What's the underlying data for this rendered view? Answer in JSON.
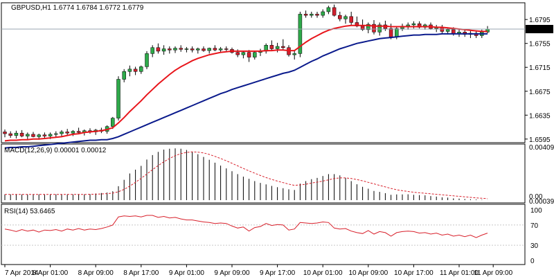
{
  "chart_data": {
    "type": "candlestick",
    "colors": {
      "up": "#2eaa4a",
      "down": "#d0202e",
      "ma_fast": "#e8151b",
      "ma_slow": "#0a1a8c",
      "macd_hist": "#000000",
      "macd_signal": "#d81f2a",
      "rsi": "#d81f2a",
      "last_price_bg": "#000000",
      "grid": "#c8c8c8"
    },
    "main": {
      "title": "GBPUSD,H1  1.6774 1.6784 1.6772 1.6779",
      "last_price": "1.6779",
      "price_ticks": [
        "1.6795",
        "1.6755",
        "1.6715",
        "1.6675",
        "1.6635",
        "1.6595"
      ],
      "ylim": [
        1.6589,
        1.6823
      ],
      "candles_ohlc": [
        [
          1.6607,
          1.6611,
          1.6598,
          1.6604
        ],
        [
          1.6604,
          1.6608,
          1.6597,
          1.6601
        ],
        [
          1.6601,
          1.6609,
          1.6596,
          1.6605
        ],
        [
          1.6605,
          1.661,
          1.6598,
          1.66
        ],
        [
          1.66,
          1.6606,
          1.6595,
          1.6603
        ],
        [
          1.6603,
          1.6607,
          1.6598,
          1.6599
        ],
        [
          1.6599,
          1.6604,
          1.6594,
          1.6602
        ],
        [
          1.6602,
          1.6606,
          1.6597,
          1.66
        ],
        [
          1.66,
          1.6606,
          1.6595,
          1.6603
        ],
        [
          1.6603,
          1.6608,
          1.6598,
          1.6604
        ],
        [
          1.6604,
          1.661,
          1.66,
          1.6607
        ],
        [
          1.6607,
          1.6612,
          1.6601,
          1.6605
        ],
        [
          1.6605,
          1.661,
          1.66,
          1.6608
        ],
        [
          1.6608,
          1.6614,
          1.6603,
          1.6606
        ],
        [
          1.6606,
          1.6611,
          1.6601,
          1.6609
        ],
        [
          1.6609,
          1.6613,
          1.6604,
          1.6607
        ],
        [
          1.6607,
          1.6612,
          1.6602,
          1.661
        ],
        [
          1.661,
          1.6614,
          1.6605,
          1.6608
        ],
        [
          1.6608,
          1.6618,
          1.6604,
          1.6616
        ],
        [
          1.6616,
          1.6632,
          1.6612,
          1.663
        ],
        [
          1.663,
          1.67,
          1.6626,
          1.6695
        ],
        [
          1.6695,
          1.6712,
          1.669,
          1.6708
        ],
        [
          1.6708,
          1.6718,
          1.67,
          1.6712
        ],
        [
          1.6712,
          1.6716,
          1.6702,
          1.6708
        ],
        [
          1.6708,
          1.6718,
          1.6704,
          1.6716
        ],
        [
          1.6716,
          1.6742,
          1.6712,
          1.6738
        ],
        [
          1.6738,
          1.6752,
          1.6732,
          1.6748
        ],
        [
          1.6748,
          1.6755,
          1.6738,
          1.6742
        ],
        [
          1.6742,
          1.6752,
          1.6736,
          1.6746
        ],
        [
          1.6746,
          1.675,
          1.6738,
          1.6744
        ],
        [
          1.6744,
          1.675,
          1.6739,
          1.6747
        ],
        [
          1.6747,
          1.6752,
          1.6741,
          1.6745
        ],
        [
          1.6745,
          1.6749,
          1.674,
          1.6746
        ],
        [
          1.6746,
          1.675,
          1.674,
          1.6744
        ],
        [
          1.6744,
          1.6748,
          1.6738,
          1.6746
        ],
        [
          1.6746,
          1.675,
          1.6741,
          1.6743
        ],
        [
          1.6743,
          1.6748,
          1.6738,
          1.6747
        ],
        [
          1.6747,
          1.6752,
          1.6742,
          1.6744
        ],
        [
          1.6744,
          1.6749,
          1.6739,
          1.6746
        ],
        [
          1.6746,
          1.675,
          1.6742,
          1.6745
        ],
        [
          1.6745,
          1.6748,
          1.6738,
          1.674
        ],
        [
          1.674,
          1.6745,
          1.6732,
          1.6736
        ],
        [
          1.6736,
          1.6742,
          1.673,
          1.674
        ],
        [
          1.674,
          1.6744,
          1.6724,
          1.6732
        ],
        [
          1.6732,
          1.6742,
          1.6728,
          1.674
        ],
        [
          1.674,
          1.6746,
          1.6734,
          1.6742
        ],
        [
          1.6742,
          1.6755,
          1.6738,
          1.6752
        ],
        [
          1.6752,
          1.676,
          1.6743,
          1.6746
        ],
        [
          1.6746,
          1.6756,
          1.674,
          1.675
        ],
        [
          1.675,
          1.6762,
          1.6744,
          1.6748
        ],
        [
          1.6748,
          1.6752,
          1.6733,
          1.6736
        ],
        [
          1.6736,
          1.6744,
          1.6728,
          1.6738
        ],
        [
          1.6738,
          1.6808,
          1.6732,
          1.6804
        ],
        [
          1.6804,
          1.681,
          1.6798,
          1.6802
        ],
        [
          1.6802,
          1.6808,
          1.6798,
          1.6804
        ],
        [
          1.6804,
          1.6808,
          1.6798,
          1.6802
        ],
        [
          1.6802,
          1.6812,
          1.6798,
          1.6808
        ],
        [
          1.6808,
          1.6818,
          1.6804,
          1.6815
        ],
        [
          1.6815,
          1.682,
          1.68,
          1.6802
        ],
        [
          1.6802,
          1.6808,
          1.6792,
          1.6796
        ],
        [
          1.6796,
          1.6803,
          1.6788,
          1.68
        ],
        [
          1.68,
          1.6808,
          1.6786,
          1.679
        ],
        [
          1.679,
          1.68,
          1.6782,
          1.6784
        ],
        [
          1.6784,
          1.6795,
          1.6776,
          1.6778
        ],
        [
          1.6778,
          1.679,
          1.6772,
          1.6787
        ],
        [
          1.6787,
          1.6794,
          1.677,
          1.6774
        ],
        [
          1.6774,
          1.679,
          1.6768,
          1.6786
        ],
        [
          1.6786,
          1.6793,
          1.6776,
          1.678
        ],
        [
          1.678,
          1.6788,
          1.6762,
          1.6766
        ],
        [
          1.6766,
          1.6782,
          1.6762,
          1.678
        ],
        [
          1.678,
          1.6788,
          1.6776,
          1.6784
        ],
        [
          1.6784,
          1.679,
          1.6778,
          1.6786
        ],
        [
          1.6786,
          1.6792,
          1.678,
          1.6788
        ],
        [
          1.6788,
          1.6792,
          1.678,
          1.6782
        ],
        [
          1.6782,
          1.6788,
          1.6778,
          1.6786
        ],
        [
          1.6786,
          1.679,
          1.6778,
          1.678
        ],
        [
          1.678,
          1.6786,
          1.6774,
          1.6782
        ],
        [
          1.6782,
          1.6786,
          1.6772,
          1.6775
        ],
        [
          1.6775,
          1.6782,
          1.677,
          1.6778
        ],
        [
          1.6778,
          1.6782,
          1.6768,
          1.6771
        ],
        [
          1.6771,
          1.6778,
          1.6766,
          1.6774
        ],
        [
          1.6774,
          1.6778,
          1.6766,
          1.677
        ],
        [
          1.677,
          1.6776,
          1.6764,
          1.6772
        ],
        [
          1.6772,
          1.6776,
          1.6764,
          1.6768
        ],
        [
          1.6768,
          1.6778,
          1.6764,
          1.6774
        ],
        [
          1.6774,
          1.6784,
          1.6772,
          1.6779
        ]
      ],
      "ma_fast": [
        1.6592,
        1.6593,
        1.6593,
        1.6594,
        1.6594,
        1.6595,
        1.6595,
        1.6596,
        1.6597,
        1.6598,
        1.6599,
        1.6601,
        1.6603,
        1.6604,
        1.6606,
        1.6607,
        1.6608,
        1.6609,
        1.6611,
        1.6614,
        1.6622,
        1.6631,
        1.6641,
        1.665,
        1.6659,
        1.6669,
        1.6678,
        1.6687,
        1.6695,
        1.6703,
        1.671,
        1.6716,
        1.6721,
        1.6726,
        1.673,
        1.6733,
        1.6736,
        1.6738,
        1.674,
        1.6741,
        1.6742,
        1.6742,
        1.6742,
        1.6742,
        1.6742,
        1.6742,
        1.6743,
        1.6743,
        1.6744,
        1.6744,
        1.6743,
        1.6743,
        1.675,
        1.6757,
        1.6763,
        1.6768,
        1.6773,
        1.6777,
        1.678,
        1.6782,
        1.6784,
        1.6785,
        1.6785,
        1.6785,
        1.6785,
        1.6784,
        1.6784,
        1.6784,
        1.6783,
        1.6783,
        1.6783,
        1.6783,
        1.6783,
        1.6783,
        1.6783,
        1.6783,
        1.6782,
        1.6782,
        1.6781,
        1.678,
        1.6779,
        1.6778,
        1.6777,
        1.6776,
        1.6775,
        1.6775
      ],
      "ma_slow": [
        1.658,
        1.6581,
        1.6581,
        1.6582,
        1.6582,
        1.6583,
        1.6584,
        1.6585,
        1.6586,
        1.6587,
        1.6588,
        1.6589,
        1.659,
        1.6591,
        1.6592,
        1.6593,
        1.6593,
        1.6594,
        1.6594,
        1.6596,
        1.6599,
        1.6603,
        1.6607,
        1.6611,
        1.6615,
        1.6619,
        1.6623,
        1.6627,
        1.6631,
        1.6635,
        1.6639,
        1.6643,
        1.6647,
        1.6651,
        1.6655,
        1.6659,
        1.6663,
        1.6667,
        1.6671,
        1.6674,
        1.6678,
        1.6681,
        1.6684,
        1.6687,
        1.669,
        1.6693,
        1.6696,
        1.6699,
        1.6702,
        1.6705,
        1.6707,
        1.671,
        1.6715,
        1.672,
        1.6725,
        1.6729,
        1.6734,
        1.6738,
        1.6742,
        1.6746,
        1.6749,
        1.6752,
        1.6755,
        1.6757,
        1.6759,
        1.6761,
        1.6763,
        1.6764,
        1.6765,
        1.6766,
        1.6767,
        1.6768,
        1.6769,
        1.6769,
        1.677,
        1.677,
        1.677,
        1.6771,
        1.6771,
        1.6771,
        1.6771,
        1.6771,
        1.6771,
        1.6771,
        1.6771,
        1.6771
      ]
    },
    "macd": {
      "title": "MACD(12,26,9) 0.00001 0.00012",
      "ticks": [
        "0.00409",
        "0.00"
      ],
      "tick_bottom": "0.00039",
      "ylim": [
        0.0,
        0.0042
      ],
      "histogram": [
        0.00045,
        0.00045,
        0.00045,
        0.00045,
        0.00045,
        0.00045,
        0.00045,
        0.00045,
        0.00045,
        0.00045,
        0.00045,
        0.00045,
        0.00045,
        0.00045,
        0.00045,
        0.00048,
        0.00052,
        0.00056,
        0.0006,
        0.0007,
        0.0011,
        0.0016,
        0.0021,
        0.0024,
        0.0027,
        0.0032,
        0.00355,
        0.0038,
        0.00398,
        0.00405,
        0.00408,
        0.00405,
        0.00395,
        0.0038,
        0.00362,
        0.0034,
        0.00318,
        0.00295,
        0.00272,
        0.0025,
        0.00228,
        0.00205,
        0.00185,
        0.00168,
        0.0015,
        0.00136,
        0.00124,
        0.00112,
        0.00102,
        0.00094,
        0.00085,
        0.0008,
        0.0013,
        0.0015,
        0.00165,
        0.00175,
        0.0019,
        0.00205,
        0.00205,
        0.00195,
        0.00175,
        0.0015,
        0.00125,
        0.00105,
        0.0009,
        0.00072,
        0.00065,
        0.00055,
        0.00042,
        0.00045,
        0.00045,
        0.00046,
        0.00042,
        0.0004,
        0.00038,
        0.00032,
        0.00028,
        0.00022,
        0.0002,
        0.00014,
        0.00012,
        9e-05,
        7e-05,
        5e-05,
        3e-05,
        1e-05
      ],
      "signal": [
        0.00045,
        0.00045,
        0.00045,
        0.00045,
        0.00045,
        0.00045,
        0.00045,
        0.00045,
        0.00045,
        0.00045,
        0.00045,
        0.00045,
        0.00045,
        0.00045,
        0.00045,
        0.00046,
        0.00047,
        0.00049,
        0.00051,
        0.00055,
        0.00066,
        0.00085,
        0.0011,
        0.0014,
        0.00172,
        0.00205,
        0.0024,
        0.00272,
        0.00302,
        0.00328,
        0.0035,
        0.00366,
        0.00376,
        0.0038,
        0.00378,
        0.00372,
        0.0036,
        0.00345,
        0.00328,
        0.0031,
        0.0029,
        0.0027,
        0.0025,
        0.0023,
        0.00212,
        0.00194,
        0.00178,
        0.00163,
        0.0015,
        0.00138,
        0.00126,
        0.00116,
        0.0012,
        0.00125,
        0.00135,
        0.00142,
        0.0015,
        0.0016,
        0.0017,
        0.00175,
        0.00175,
        0.0017,
        0.00162,
        0.00152,
        0.0014,
        0.00128,
        0.00116,
        0.00104,
        0.00092,
        0.00082,
        0.00074,
        0.00068,
        0.00062,
        0.00058,
        0.00054,
        0.0005,
        0.00046,
        0.00042,
        0.00038,
        0.00034,
        0.0003,
        0.00026,
        0.00022,
        0.00018,
        0.00015,
        0.00012
      ]
    },
    "rsi": {
      "title": "RSI(14) 53.6465",
      "ticks": [
        "100",
        "70",
        "30",
        "0"
      ],
      "ylim": [
        0,
        100
      ],
      "levels": [
        70,
        30
      ],
      "values": [
        62,
        60,
        57,
        61,
        58,
        60,
        56,
        60,
        59,
        61,
        58,
        62,
        60,
        63,
        60,
        62,
        61,
        63,
        66,
        70,
        86,
        88,
        87,
        88,
        86,
        89,
        89,
        85,
        87,
        84,
        85,
        82,
        80,
        80,
        78,
        76,
        75,
        73,
        74,
        73,
        68,
        64,
        66,
        58,
        65,
        67,
        73,
        69,
        71,
        70,
        60,
        62,
        75,
        74,
        73,
        74,
        76,
        75,
        64,
        62,
        63,
        58,
        55,
        53,
        59,
        52,
        57,
        55,
        48,
        55,
        57,
        58,
        57,
        54,
        55,
        52,
        54,
        50,
        52,
        48,
        50,
        47,
        50,
        45,
        50,
        54
      ]
    },
    "time_ticks": [
      {
        "i": 0,
        "label": "7 Apr 2014"
      },
      {
        "i": 8,
        "label": "8 Apr 01:00"
      },
      {
        "i": 16,
        "label": "8 Apr 09:00"
      },
      {
        "i": 24,
        "label": "8 Apr 17:00"
      },
      {
        "i": 32,
        "label": "9 Apr 01:00"
      },
      {
        "i": 40,
        "label": "9 Apr 09:00"
      },
      {
        "i": 48,
        "label": "9 Apr 17:00"
      },
      {
        "i": 56,
        "label": "10 Apr 01:00"
      },
      {
        "i": 64,
        "label": "10 Apr 09:00"
      },
      {
        "i": 72,
        "label": "10 Apr 17:00"
      },
      {
        "i": 80,
        "label": "11 Apr 01:00"
      },
      {
        "i": 86,
        "label": "11 Apr 09:00"
      }
    ]
  }
}
